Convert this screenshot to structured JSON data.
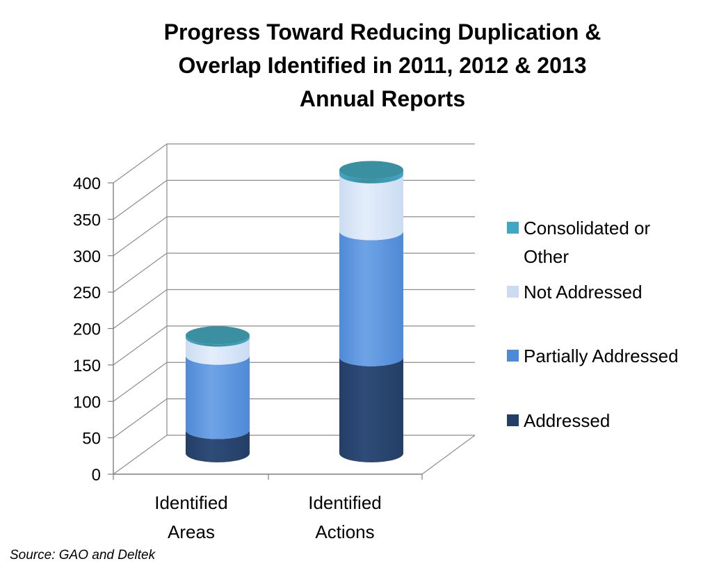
{
  "chart_data": {
    "type": "bar",
    "stacked": true,
    "style": "3d-cylinder",
    "title_lines": [
      "Progress Toward Reducing Duplication &",
      "Overlap Identified in 2011, 2012 & 2013",
      "Annual Reports"
    ],
    "categories": [
      [
        "Identified",
        "Areas"
      ],
      [
        "Identified",
        "Actions"
      ]
    ],
    "series": [
      {
        "name": "Addressed",
        "values": [
          32,
          132
        ],
        "color": "#243f66",
        "top_color": "#2e4c78"
      },
      {
        "name": "Partially Addressed",
        "values": [
          102,
          173
        ],
        "color": "#4f8ad6",
        "top_color": "#6fa3e6"
      },
      {
        "name": "Not Addressed",
        "values": [
          25,
          78
        ],
        "color": "#cbdcf2",
        "top_color": "#e4eefb"
      },
      {
        "name": "Consolidated or Other",
        "values": [
          3,
          6
        ],
        "color": "#3fa6c4",
        "top_color": "#3a8fa0"
      }
    ],
    "legend_lines": [
      [
        "Consolidated or",
        "Other"
      ],
      [
        "Not Addressed"
      ],
      [
        "Partially Addressed"
      ],
      [
        "Addressed"
      ]
    ],
    "ylim": [
      0,
      400
    ],
    "yticks": [
      "0",
      "50",
      "100",
      "150",
      "200",
      "250",
      "300",
      "350",
      "400"
    ],
    "ytick_values": [
      0,
      50,
      100,
      150,
      200,
      250,
      300,
      350,
      400
    ],
    "grid": true,
    "legend_position": "right"
  },
  "source": "Source: GAO and Deltek"
}
